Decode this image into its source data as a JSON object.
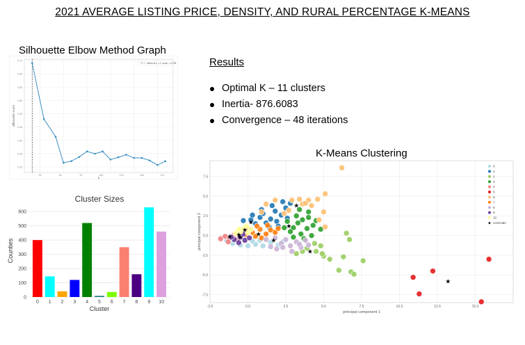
{
  "page": {
    "title": "2021 AVERAGE LISTING PRICE, DENSITY, AND RURAL PERCENTAGE K-MEANS"
  },
  "results": {
    "heading": "Results",
    "items": [
      "Optimal K – 11 clusters",
      "Inertia- 876.6083",
      "Convergence – 48 iterations"
    ]
  },
  "elbow_title": "Silhouette Elbow Method Graph",
  "kmeans_title": "K-Means Clustering",
  "chart_data": [
    {
      "type": "line",
      "title": "",
      "xlabel": "k",
      "ylabel": "silhouette score",
      "legend": "elbow at k = 2, score = 0.708",
      "legend_placement": "top-right",
      "x_ticks": [
        "25",
        "50",
        "75",
        "100",
        "125",
        "150",
        "175"
      ],
      "y_ticks": [
        "0.30",
        "0.35",
        "0.40",
        "0.45",
        "0.50",
        "0.55",
        "0.60",
        "0.65",
        "0.70"
      ],
      "x": [
        2,
        5,
        8,
        10,
        12,
        14,
        16,
        18,
        20,
        22,
        24,
        26,
        28,
        30,
        32,
        34,
        36
      ],
      "values": [
        0.708,
        0.535,
        0.48,
        0.4,
        0.405,
        0.418,
        0.435,
        0.428,
        0.435,
        0.41,
        0.417,
        0.425,
        0.415,
        0.415,
        0.407,
        0.393,
        0.405
      ],
      "elbow_k": 2,
      "series_color": "#3b8fc2",
      "grid": true
    },
    {
      "type": "bar",
      "title": "Cluster Sizes",
      "xlabel": "Cluster",
      "ylabel": "Counties",
      "ylim": [
        0,
        650
      ],
      "y_ticks": [
        0,
        100,
        200,
        300,
        400,
        500,
        600
      ],
      "categories": [
        "0",
        "1",
        "2",
        "3",
        "4",
        "5",
        "6",
        "7",
        "8",
        "9",
        "10"
      ],
      "values": [
        400,
        145,
        40,
        120,
        520,
        8,
        35,
        350,
        160,
        630,
        460
      ],
      "colors": [
        "#ff0000",
        "#00ffff",
        "#ffa500",
        "#0000ff",
        "#008000",
        "#1a7a7a",
        "#7cfc00",
        "#fa8072",
        "#4b0082",
        "#00ffff",
        "#dda0dd"
      ]
    },
    {
      "type": "scatter",
      "title": "K-Means Clustering",
      "xlabel": "principal component 1",
      "ylabel": "principal component 2",
      "xlim": [
        -2.5,
        17.5
      ],
      "ylim": [
        -8.5,
        9.5
      ],
      "x_ticks": [
        -2.5,
        0.0,
        2.5,
        5.0,
        7.5,
        10.0,
        12.5,
        15.0
      ],
      "y_ticks": [
        -7.5,
        -5.0,
        -2.5,
        0.0,
        2.5,
        5.0,
        7.5
      ],
      "legend_placement": "top-right",
      "legend": [
        "0",
        "1",
        "2",
        "3",
        "4",
        "5",
        "6",
        "7",
        "8",
        "9",
        "10",
        "centroids"
      ],
      "colors": [
        "#add8e6",
        "#1f77b4",
        "#9acd60",
        "#2ca02c",
        "#f08080",
        "#e31a1c",
        "#fdbf6f",
        "#ff7f0e",
        "#cab2d6",
        "#6a3d9a",
        "#ffff99"
      ],
      "series": [
        {
          "name": "0",
          "points": [
            [
              -1.4,
              -0.6
            ],
            [
              -1.0,
              -1.0
            ],
            [
              -0.5,
              -1.2
            ],
            [
              0.0,
              -1.3
            ],
            [
              0.5,
              -1.1
            ],
            [
              1.0,
              -1.3
            ],
            [
              1.5,
              -0.9
            ],
            [
              0.3,
              -0.7
            ],
            [
              -0.2,
              -0.4
            ],
            [
              2.0,
              -1.2
            ],
            [
              2.3,
              -0.8
            ],
            [
              0.8,
              -0.6
            ]
          ]
        },
        {
          "name": "1",
          "points": [
            [
              0.2,
              2.0
            ],
            [
              0.8,
              2.3
            ],
            [
              1.0,
              2.8
            ],
            [
              1.5,
              2.1
            ],
            [
              1.8,
              3.1
            ],
            [
              2.2,
              2.6
            ],
            [
              2.5,
              3.5
            ],
            [
              0.5,
              1.5
            ],
            [
              1.2,
              1.6
            ],
            [
              1.9,
              1.8
            ],
            [
              2.6,
              2.2
            ],
            [
              2.8,
              4.1
            ],
            [
              2.3,
              4.3
            ],
            [
              1.6,
              3.8
            ],
            [
              0.9,
              3.3
            ],
            [
              0.3,
              2.6
            ],
            [
              -0.3,
              1.9
            ],
            [
              2.0,
              1.2
            ],
            [
              1.4,
              1.1
            ]
          ]
        },
        {
          "name": "2",
          "points": [
            [
              6.5,
              0.3
            ],
            [
              6.7,
              -0.5
            ],
            [
              7.6,
              -3.2
            ],
            [
              6.3,
              -2.7
            ],
            [
              6.0,
              -4.4
            ],
            [
              5.0,
              -2.6
            ],
            [
              5.4,
              -3.0
            ],
            [
              4.8,
              -1.3
            ],
            [
              4.5,
              -2.0
            ],
            [
              3.9,
              -1.6
            ],
            [
              3.2,
              -2.3
            ],
            [
              3.6,
              -2.0
            ],
            [
              4.4,
              -1.0
            ],
            [
              4.9,
              -2.3
            ],
            [
              6.8,
              -4.6
            ],
            [
              7.0,
              -4.9
            ]
          ]
        },
        {
          "name": "3",
          "points": [
            [
              3.3,
              1.6
            ],
            [
              3.6,
              2.0
            ],
            [
              4.0,
              2.3
            ],
            [
              4.5,
              1.9
            ],
            [
              3.0,
              1.0
            ],
            [
              3.9,
              0.9
            ],
            [
              4.3,
              1.3
            ],
            [
              2.8,
              0.5
            ],
            [
              3.5,
              0.2
            ],
            [
              4.2,
              0.0
            ],
            [
              2.6,
              1.8
            ],
            [
              3.2,
              2.5
            ],
            [
              2.4,
              1.0
            ],
            [
              3.7,
              -0.4
            ],
            [
              4.0,
              3.0
            ],
            [
              3.4,
              3.3
            ],
            [
              4.8,
              0.8
            ],
            [
              3.0,
              -0.2
            ]
          ]
        },
        {
          "name": "4",
          "points": [
            [
              -1.8,
              -0.4
            ],
            [
              -1.5,
              -0.1
            ],
            [
              -1.2,
              -0.3
            ],
            [
              -0.9,
              0.1
            ],
            [
              -1.3,
              -0.8
            ],
            [
              -0.7,
              -0.5
            ]
          ]
        },
        {
          "name": "5",
          "points": [
            [
              15.9,
              -3.0
            ],
            [
              12.2,
              -4.5
            ],
            [
              10.9,
              -5.3
            ],
            [
              11.3,
              -7.4
            ],
            [
              15.4,
              -8.4
            ]
          ]
        },
        {
          "name": "6",
          "points": [
            [
              6.2,
              8.6
            ],
            [
              5.1,
              5.3
            ],
            [
              4.6,
              4.6
            ],
            [
              4.0,
              4.5
            ],
            [
              3.6,
              4.0
            ],
            [
              2.9,
              4.5
            ],
            [
              3.4,
              4.6
            ],
            [
              4.2,
              3.8
            ],
            [
              5.0,
              3.0
            ],
            [
              4.7,
              2.0
            ],
            [
              2.7,
              3.2
            ],
            [
              2.4,
              2.8
            ],
            [
              1.8,
              4.5
            ],
            [
              1.2,
              4.0
            ],
            [
              0.9,
              3.0
            ],
            [
              5.1,
              1.1
            ],
            [
              3.8,
              4.1
            ]
          ]
        },
        {
          "name": "7",
          "points": [
            [
              -0.3,
              0.6
            ],
            [
              0.3,
              0.4
            ],
            [
              0.8,
              0.8
            ],
            [
              1.2,
              0.2
            ],
            [
              1.5,
              0.7
            ],
            [
              0.5,
              -0.1
            ],
            [
              0.9,
              -0.3
            ],
            [
              1.8,
              0.4
            ],
            [
              0.0,
              0.9
            ],
            [
              2.0,
              0.9
            ],
            [
              1.3,
              1.3
            ],
            [
              0.6,
              1.2
            ],
            [
              -0.1,
              0.1
            ]
          ]
        },
        {
          "name": "8",
          "points": [
            [
              1.2,
              -0.5
            ],
            [
              1.8,
              -0.3
            ],
            [
              2.2,
              -1.0
            ],
            [
              2.8,
              -1.3
            ],
            [
              3.2,
              -0.8
            ],
            [
              3.5,
              -1.5
            ],
            [
              2.5,
              -0.5
            ],
            [
              1.9,
              -1.7
            ],
            [
              2.9,
              -2.0
            ],
            [
              3.4,
              -1.1
            ],
            [
              4.0,
              -1.2
            ],
            [
              2.3,
              -1.5
            ],
            [
              3.8,
              -0.6
            ],
            [
              1.5,
              -1.4
            ]
          ]
        },
        {
          "name": "9",
          "points": [
            [
              -0.9,
              -0.5
            ],
            [
              -0.5,
              -0.2
            ],
            [
              -0.2,
              -0.6
            ],
            [
              -0.6,
              -0.9
            ],
            [
              -0.3,
              0.2
            ],
            [
              0.1,
              -0.3
            ],
            [
              -1.1,
              -0.2
            ]
          ]
        },
        {
          "name": "10",
          "points": [
            [
              -0.5,
              0.5
            ],
            [
              -0.3,
              0.9
            ],
            [
              0.0,
              0.4
            ],
            [
              -0.1,
              1.2
            ],
            [
              -0.6,
              0.8
            ],
            [
              0.2,
              0.8
            ],
            [
              -0.8,
              0.3
            ]
          ]
        }
      ],
      "centroids": [
        [
          -0.5,
          -0.2
        ],
        [
          0.2,
          1.7
        ],
        [
          4.1,
          -2.0
        ],
        [
          2.7,
          1.2
        ],
        [
          -1.2,
          -0.1
        ],
        [
          13.2,
          -5.8
        ],
        [
          3.2,
          3.8
        ],
        [
          0.7,
          0.2
        ],
        [
          1.7,
          -0.6
        ],
        [
          -0.6,
          0.1
        ],
        [
          -0.2,
          0.7
        ]
      ]
    }
  ]
}
